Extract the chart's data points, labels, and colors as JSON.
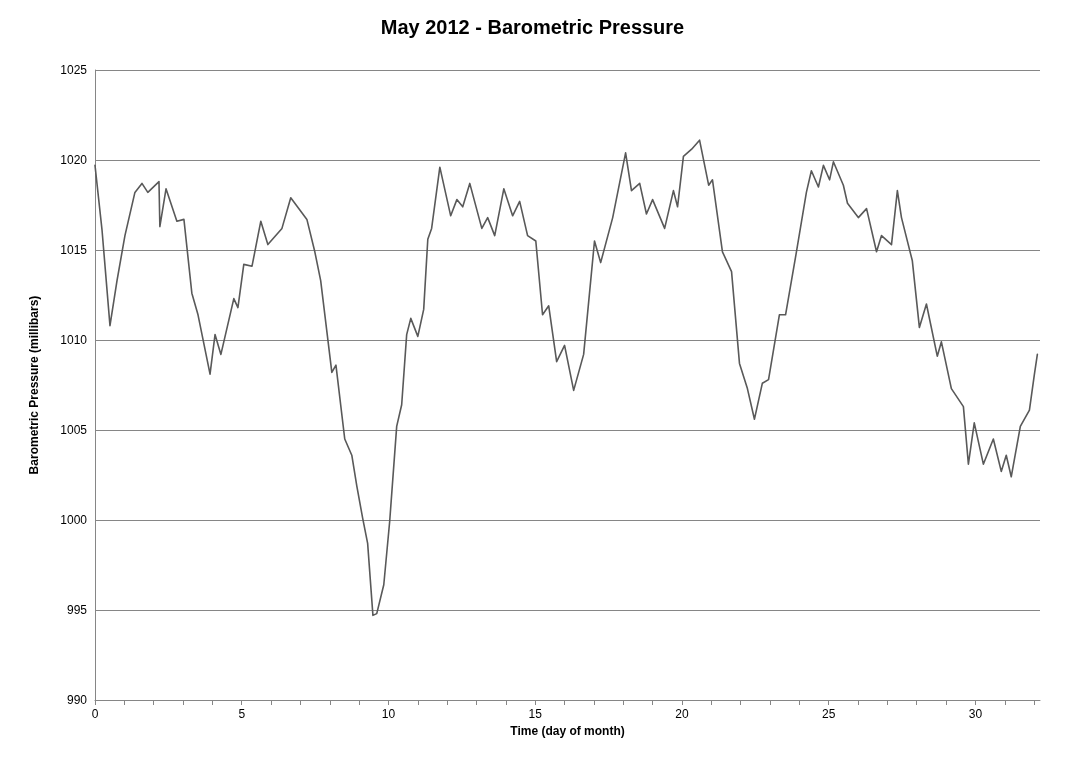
{
  "chart_data": {
    "type": "line",
    "title": "May 2012 - Barometric Pressure",
    "xlabel": "Time (day of month)",
    "ylabel": "Barometric Pressure (millibars)",
    "xlim": [
      0,
      32.2
    ],
    "xticks": [
      0,
      {
        "value": 1,
        "label": null
      },
      {
        "value": 2,
        "label": null
      },
      {
        "value": 3,
        "label": null
      },
      {
        "value": 4,
        "label": null
      },
      5,
      {
        "value": 6,
        "label": null
      },
      {
        "value": 7,
        "label": null
      },
      {
        "value": 8,
        "label": null
      },
      {
        "value": 9,
        "label": null
      },
      10,
      {
        "value": 11,
        "label": null
      },
      {
        "value": 12,
        "label": null
      },
      {
        "value": 13,
        "label": null
      },
      {
        "value": 14,
        "label": null
      },
      15,
      {
        "value": 16,
        "label": null
      },
      {
        "value": 17,
        "label": null
      },
      {
        "value": 18,
        "label": null
      },
      {
        "value": 19,
        "label": null
      },
      20,
      {
        "value": 21,
        "label": null
      },
      {
        "value": 22,
        "label": null
      },
      {
        "value": 23,
        "label": null
      },
      {
        "value": 24,
        "label": null
      },
      25,
      {
        "value": 26,
        "label": null
      },
      {
        "value": 27,
        "label": null
      },
      {
        "value": 28,
        "label": null
      },
      {
        "value": 29,
        "label": null
      },
      30,
      {
        "value": 31,
        "label": null
      },
      {
        "value": 32,
        "label": null
      }
    ],
    "ylim": [
      990,
      1025
    ],
    "yticks": [
      990,
      995,
      1000,
      1005,
      1010,
      1015,
      1020,
      1025
    ],
    "grid": "y",
    "marker": "none",
    "line_style": "solid",
    "series": [
      {
        "color": "#595959",
        "x": [
          0,
          0.24,
          0.51,
          0.75,
          1.02,
          1.36,
          1.6,
          1.8,
          2.18,
          2.21,
          2.42,
          2.79,
          3.03,
          3.3,
          3.51,
          3.92,
          4.09,
          4.29,
          4.73,
          4.87,
          5.07,
          5.35,
          5.65,
          5.89,
          6.37,
          6.67,
          7.22,
          7.49,
          7.69,
          8.07,
          8.21,
          8.51,
          8.75,
          8.92,
          9.12,
          9.29,
          9.47,
          9.6,
          9.84,
          10.04,
          10.28,
          10.45,
          10.62,
          10.76,
          11.0,
          11.2,
          11.34,
          11.47,
          11.75,
          12.12,
          12.33,
          12.53,
          12.77,
          13.18,
          13.38,
          13.62,
          13.93,
          14.23,
          14.47,
          14.74,
          15.02,
          15.25,
          15.46,
          15.73,
          16.0,
          16.31,
          16.65,
          17.02,
          17.23,
          17.64,
          18.08,
          18.28,
          18.56,
          18.79,
          19.0,
          19.41,
          19.71,
          19.85,
          20.05,
          20.33,
          20.6,
          20.91,
          21.04,
          21.38,
          21.69,
          21.96,
          22.23,
          22.47,
          22.74,
          22.95,
          23.32,
          23.53,
          23.87,
          24.24,
          24.41,
          24.65,
          24.82,
          25.03,
          25.16,
          25.5,
          25.64,
          26.01,
          26.29,
          26.63,
          26.8,
          27.14,
          27.34,
          27.48,
          27.85,
          28.09,
          28.33,
          28.7,
          28.84,
          29.18,
          29.59,
          29.76,
          29.96,
          30.27,
          30.61,
          30.88,
          31.05,
          31.22,
          31.53,
          31.84,
          32.01,
          32.11
        ],
        "values": [
          1019.7,
          1016.1,
          1010.8,
          1013.3,
          1015.8,
          1018.2,
          1018.7,
          1018.2,
          1018.8,
          1016.3,
          1018.4,
          1016.6,
          1016.7,
          1012.6,
          1011.4,
          1008.1,
          1010.3,
          1009.2,
          1012.3,
          1011.8,
          1014.2,
          1014.1,
          1016.6,
          1015.3,
          1016.2,
          1017.9,
          1016.7,
          1014.9,
          1013.3,
          1008.2,
          1008.6,
          1004.5,
          1003.6,
          1001.9,
          1000.1,
          998.7,
          994.7,
          994.8,
          996.4,
          999.9,
          1005.2,
          1006.4,
          1010.3,
          1011.2,
          1010.2,
          1011.7,
          1015.6,
          1016.2,
          1019.6,
          1016.9,
          1017.8,
          1017.4,
          1018.7,
          1016.2,
          1016.8,
          1015.8,
          1018.4,
          1016.9,
          1017.7,
          1015.8,
          1015.5,
          1011.4,
          1011.9,
          1008.8,
          1009.7,
          1007.2,
          1009.2,
          1015.5,
          1014.3,
          1016.8,
          1020.4,
          1018.3,
          1018.7,
          1017,
          1017.8,
          1016.2,
          1018.3,
          1017.4,
          1020.2,
          1020.6,
          1021.1,
          1018.6,
          1018.9,
          1014.9,
          1013.8,
          1008.7,
          1007.3,
          1005.6,
          1007.6,
          1007.8,
          1011.4,
          1011.4,
          1014.6,
          1018.2,
          1019.4,
          1018.5,
          1019.7,
          1018.9,
          1019.9,
          1018.6,
          1017.6,
          1016.8,
          1017.3,
          1014.9,
          1015.8,
          1015.3,
          1018.3,
          1016.8,
          1014.4,
          1010.7,
          1012,
          1009.1,
          1009.9,
          1007.3,
          1006.3,
          1003.1,
          1005.4,
          1003.1,
          1004.5,
          1002.7,
          1003.6,
          1002.4,
          1005.2,
          1006.1,
          1008.1,
          1009.2
        ]
      }
    ]
  }
}
